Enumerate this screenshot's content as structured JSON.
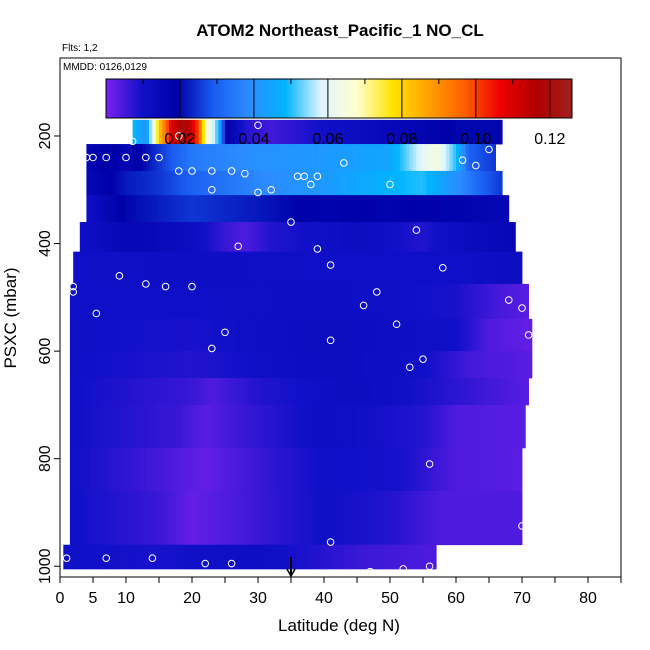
{
  "chart_data": {
    "type": "heatmap",
    "title": "ATOM2 Northeast_Pacific_1 NO_CL",
    "flts_label": "Flts: 1,2",
    "mmdd_label": "MMDD: 0126,0129",
    "xlabel": "Latitude (deg N)",
    "ylabel": "PSXC (mbar)",
    "xlim": [
      0,
      85
    ],
    "ylim": [
      1020,
      55
    ],
    "x_ticks": [
      0,
      5,
      10,
      20,
      30,
      40,
      50,
      60,
      70,
      80
    ],
    "y_ticks": [
      200,
      400,
      600,
      800,
      1000
    ],
    "colorbar": {
      "range": [
        0.0,
        0.126
      ],
      "tick_values": [
        0.02,
        0.04,
        0.06,
        0.08,
        0.1,
        0.12
      ],
      "tick_labels": [
        "0.02",
        "0.04",
        "0.06",
        "0.08",
        "0.10",
        "0.12"
      ],
      "colors": [
        "#7a22ee",
        "#1010c8",
        "#0000a8",
        "#1a5cf0",
        "#2c8cff",
        "#00b4ff",
        "#dff4ff",
        "#ffffd0",
        "#ffe400",
        "#ffa000",
        "#ff6000",
        "#ee0000",
        "#b00000",
        "#a02020"
      ]
    },
    "bands": [
      {
        "p": [
          170,
          215
        ],
        "lat": [
          11,
          67
        ],
        "knots": [
          [
            11,
            0.05
          ],
          [
            13,
            0.04
          ],
          [
            15,
            0.08
          ],
          [
            17,
            0.11
          ],
          [
            19,
            0.12
          ],
          [
            21,
            0.1
          ],
          [
            22,
            0.07
          ],
          [
            24,
            0.05
          ],
          [
            25,
            0.02
          ],
          [
            28,
            0.008
          ],
          [
            32,
            0.005
          ],
          [
            40,
            0.01
          ],
          [
            52,
            0.015
          ],
          [
            60,
            0.02
          ],
          [
            67,
            0.02
          ]
        ]
      },
      {
        "p": [
          215,
          265
        ],
        "lat": [
          4,
          66
        ],
        "knots": [
          [
            4,
            0.016
          ],
          [
            8,
            0.02
          ],
          [
            10,
            0.015
          ],
          [
            15,
            0.025
          ],
          [
            20,
            0.035
          ],
          [
            30,
            0.04
          ],
          [
            40,
            0.042
          ],
          [
            50,
            0.045
          ],
          [
            55,
            0.06
          ],
          [
            57,
            0.065
          ],
          [
            60,
            0.05
          ],
          [
            62,
            0.03
          ],
          [
            66,
            0.025
          ]
        ]
      },
      {
        "p": [
          265,
          310
        ],
        "lat": [
          4,
          67
        ],
        "knots": [
          [
            4,
            0.015
          ],
          [
            10,
            0.022
          ],
          [
            15,
            0.025
          ],
          [
            20,
            0.03
          ],
          [
            30,
            0.038
          ],
          [
            40,
            0.042
          ],
          [
            50,
            0.048
          ],
          [
            55,
            0.05
          ],
          [
            60,
            0.04
          ],
          [
            64,
            0.03
          ],
          [
            67,
            0.025
          ]
        ]
      },
      {
        "p": [
          310,
          360
        ],
        "lat": [
          4,
          68
        ],
        "knots": [
          [
            4,
            0.01
          ],
          [
            10,
            0.02
          ],
          [
            20,
            0.025
          ],
          [
            30,
            0.022
          ],
          [
            40,
            0.018
          ],
          [
            50,
            0.02
          ],
          [
            60,
            0.018
          ],
          [
            68,
            0.015
          ]
        ]
      },
      {
        "p": [
          360,
          415
        ],
        "lat": [
          3,
          69
        ],
        "knots": [
          [
            3,
            0.01
          ],
          [
            10,
            0.015
          ],
          [
            20,
            0.012
          ],
          [
            25,
            0.006
          ],
          [
            28,
            0.004
          ],
          [
            32,
            0.008
          ],
          [
            45,
            0.012
          ],
          [
            55,
            0.008
          ],
          [
            60,
            0.012
          ],
          [
            69,
            0.015
          ]
        ]
      },
      {
        "p": [
          415,
          475
        ],
        "lat": [
          2,
          70
        ],
        "knots": [
          [
            2,
            0.01
          ],
          [
            20,
            0.011
          ],
          [
            40,
            0.01
          ],
          [
            60,
            0.01
          ],
          [
            70,
            0.012
          ]
        ]
      },
      {
        "p": [
          475,
          540
        ],
        "lat": [
          1.5,
          71
        ],
        "knots": [
          [
            1.5,
            0.01
          ],
          [
            20,
            0.01
          ],
          [
            40,
            0.011
          ],
          [
            60,
            0.009
          ],
          [
            66,
            0.005
          ],
          [
            71,
            0.003
          ]
        ]
      },
      {
        "p": [
          540,
          600
        ],
        "lat": [
          1.5,
          71.5
        ],
        "knots": [
          [
            1.5,
            0.01
          ],
          [
            20,
            0.009
          ],
          [
            40,
            0.012
          ],
          [
            60,
            0.01
          ],
          [
            65,
            0.004
          ],
          [
            71.5,
            0.002
          ]
        ]
      },
      {
        "p": [
          600,
          650
        ],
        "lat": [
          1.5,
          71.5
        ],
        "knots": [
          [
            1.5,
            0.01
          ],
          [
            20,
            0.008
          ],
          [
            40,
            0.012
          ],
          [
            55,
            0.01
          ],
          [
            62,
            0.005
          ],
          [
            71.5,
            0.003
          ]
        ]
      },
      {
        "p": [
          650,
          700
        ],
        "lat": [
          1.5,
          71
        ],
        "knots": [
          [
            1.5,
            0.01
          ],
          [
            20,
            0.006
          ],
          [
            23,
            0.004
          ],
          [
            30,
            0.008
          ],
          [
            45,
            0.012
          ],
          [
            58,
            0.008
          ],
          [
            71,
            0.003
          ]
        ]
      },
      {
        "p": [
          700,
          780
        ],
        "lat": [
          1.5,
          70.5
        ],
        "knots": [
          [
            1.5,
            0.01
          ],
          [
            18,
            0.006
          ],
          [
            22,
            0.003
          ],
          [
            28,
            0.006
          ],
          [
            40,
            0.011
          ],
          [
            55,
            0.008
          ],
          [
            60,
            0.004
          ],
          [
            70.5,
            0.003
          ]
        ]
      },
      {
        "p": [
          780,
          860
        ],
        "lat": [
          1.5,
          70
        ],
        "knots": [
          [
            1.5,
            0.01
          ],
          [
            15,
            0.005
          ],
          [
            22,
            0.002
          ],
          [
            30,
            0.006
          ],
          [
            40,
            0.01
          ],
          [
            52,
            0.009
          ],
          [
            60,
            0.004
          ],
          [
            70,
            0.003
          ]
        ]
      },
      {
        "p": [
          860,
          960
        ],
        "lat": [
          1.5,
          70
        ],
        "knots": [
          [
            1.5,
            0.01
          ],
          [
            15,
            0.006
          ],
          [
            20,
            0.002
          ],
          [
            28,
            0.005
          ],
          [
            40,
            0.01
          ],
          [
            50,
            0.008
          ],
          [
            58,
            0.004
          ],
          [
            70,
            0.004
          ]
        ]
      },
      {
        "p": [
          960,
          1005
        ],
        "lat": [
          0.5,
          57
        ],
        "knots": [
          [
            0.5,
            0.01
          ],
          [
            15,
            0.009
          ],
          [
            30,
            0.011
          ],
          [
            45,
            0.006
          ],
          [
            57,
            0.004
          ]
        ]
      }
    ],
    "points": [
      [
        11,
        210
      ],
      [
        18,
        200
      ],
      [
        30,
        180
      ],
      [
        65,
        225
      ],
      [
        61,
        245
      ],
      [
        4,
        240
      ],
      [
        5,
        240
      ],
      [
        7,
        240
      ],
      [
        10,
        240
      ],
      [
        13,
        240
      ],
      [
        15,
        240
      ],
      [
        18,
        265
      ],
      [
        20,
        265
      ],
      [
        23,
        265
      ],
      [
        26,
        265
      ],
      [
        28,
        270
      ],
      [
        36,
        275
      ],
      [
        37,
        275
      ],
      [
        38,
        290
      ],
      [
        39,
        275
      ],
      [
        43,
        250
      ],
      [
        50,
        290
      ],
      [
        63,
        255
      ],
      [
        23,
        300
      ],
      [
        30,
        305
      ],
      [
        32,
        300
      ],
      [
        35,
        360
      ],
      [
        39,
        410
      ],
      [
        41,
        440
      ],
      [
        27,
        405
      ],
      [
        54,
        375
      ],
      [
        58,
        445
      ],
      [
        2,
        480
      ],
      [
        2,
        490
      ],
      [
        9,
        460
      ],
      [
        13,
        475
      ],
      [
        16,
        480
      ],
      [
        20,
        480
      ],
      [
        48,
        490
      ],
      [
        46,
        515
      ],
      [
        68,
        505
      ],
      [
        70,
        520
      ],
      [
        5.5,
        530
      ],
      [
        51,
        550
      ],
      [
        25,
        565
      ],
      [
        41,
        580
      ],
      [
        71,
        570
      ],
      [
        23,
        595
      ],
      [
        55,
        615
      ],
      [
        53,
        630
      ],
      [
        56,
        810
      ],
      [
        70,
        925
      ],
      [
        41,
        955
      ],
      [
        1,
        985
      ],
      [
        7,
        985
      ],
      [
        14,
        985
      ],
      [
        22,
        995
      ],
      [
        26,
        995
      ],
      [
        47,
        1010
      ],
      [
        52,
        1005
      ],
      [
        56,
        1000
      ]
    ],
    "marker_lat": 35
  }
}
